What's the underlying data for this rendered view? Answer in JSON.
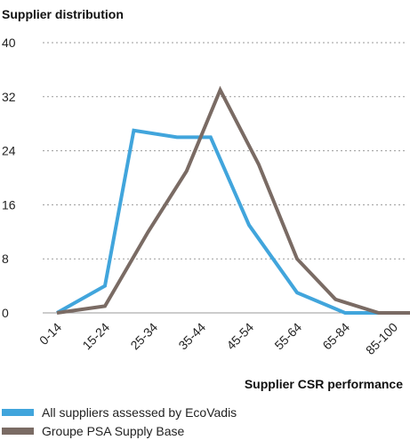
{
  "chart_data": {
    "type": "line",
    "title": "Supplier distribution",
    "xlabel": "Supplier CSR performance",
    "ylabel": "",
    "categories": [
      "0-14",
      "15-24",
      "25-34",
      "35-44",
      "45-54",
      "55-64",
      "65-84",
      "85-100"
    ],
    "ylim": [
      0,
      40
    ],
    "yticks": [
      0,
      8,
      16,
      24,
      32,
      40
    ],
    "grid": "horizontal dotted",
    "legend_position": "bottom-left",
    "series": [
      {
        "name": "All suppliers assessed by EcoVadis",
        "color": "#41a5dc",
        "x": [
          0,
          1,
          1.6,
          2.5,
          3.2,
          4,
          5,
          6,
          6.5,
          7.5
        ],
        "values": [
          0,
          4,
          27,
          26,
          26,
          13,
          3,
          0,
          0,
          0
        ]
      },
      {
        "name": "Groupe PSA Supply Base",
        "color": "#7a6b64",
        "x": [
          0,
          1,
          1.9,
          2.7,
          3.4,
          4.2,
          5,
          5.8,
          6.7,
          7.5
        ],
        "values": [
          0,
          1,
          12,
          21,
          33,
          22,
          8,
          2,
          0,
          0
        ]
      }
    ]
  }
}
